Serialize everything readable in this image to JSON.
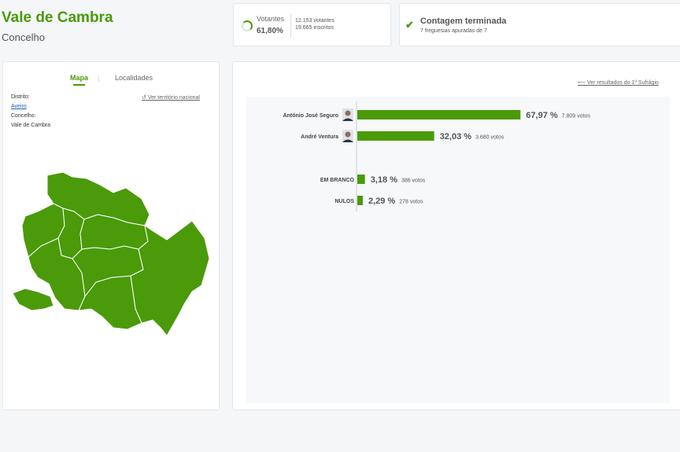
{
  "header": {
    "title": "Vale de Cambra",
    "subtitle": "Concelho"
  },
  "votantes": {
    "label": "Votantes",
    "percent": "61,80%",
    "votantes_text": "12.153 votantes",
    "inscritos_text": "19.665 inscritos"
  },
  "contagem": {
    "title": "Contagem terminada",
    "subtitle": "7 freguesias apuradas de 7"
  },
  "left_panel": {
    "tabs": [
      "Mapa",
      "Localidades"
    ],
    "distrito_label": "Distrito:",
    "distrito_value": "Aveiro",
    "concelho_label": "Concelho:",
    "concelho_value": "Vale de Cambra",
    "ver_territorio": "Ver território nacional"
  },
  "right_panel": {
    "ver_resultados": "Ver resultados do 1º Sufrágio"
  },
  "colors": {
    "accent": "#4a9a0a",
    "map_fill": "#4a9a0a",
    "bar": "#4a9a0a"
  },
  "chart_data": {
    "type": "bar",
    "orientation": "horizontal",
    "categories": [
      "António José Seguro",
      "André Ventura",
      "EM BRANCO",
      "NULOS"
    ],
    "values": [
      67.97,
      32.03,
      3.18,
      2.29
    ],
    "value_labels": [
      "67,97 %",
      "32,03 %",
      "3,18 %",
      "2,29 %"
    ],
    "votes_labels": [
      "7.809 votos",
      "3.680 votos",
      "386 votos",
      "278 votos"
    ],
    "has_photo": [
      true,
      true,
      false,
      false
    ],
    "xlim": [
      0,
      100
    ]
  }
}
